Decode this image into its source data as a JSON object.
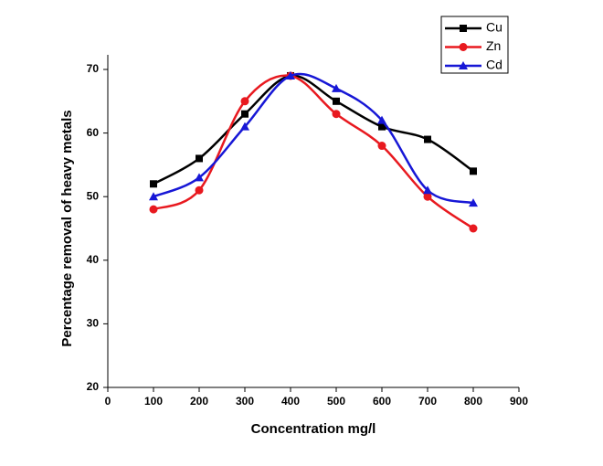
{
  "chart_data": {
    "type": "line",
    "x_label": "Concentration mg/l",
    "y_label": "Percentage removal of heavy metals",
    "x": [
      100,
      200,
      300,
      400,
      500,
      600,
      700,
      800
    ],
    "series": [
      {
        "name": "Cu",
        "color": "#000000",
        "marker": "square",
        "values": [
          52,
          56,
          63,
          69,
          65,
          61,
          59,
          54
        ]
      },
      {
        "name": "Zn",
        "color": "#e8191f",
        "marker": "circle",
        "values": [
          48,
          51,
          65,
          69,
          63,
          58,
          50,
          45
        ]
      },
      {
        "name": "Cd",
        "color": "#1717d6",
        "marker": "triangle",
        "values": [
          50,
          53,
          61,
          69,
          67,
          62,
          51,
          49
        ]
      }
    ],
    "xlim": [
      0,
      900
    ],
    "xticks": [
      0,
      100,
      200,
      300,
      400,
      500,
      600,
      700,
      800,
      900
    ],
    "ylim": [
      20,
      70
    ],
    "yticks": [
      20,
      30,
      40,
      50,
      60,
      70
    ],
    "smooth": true,
    "legend": "top-right"
  }
}
